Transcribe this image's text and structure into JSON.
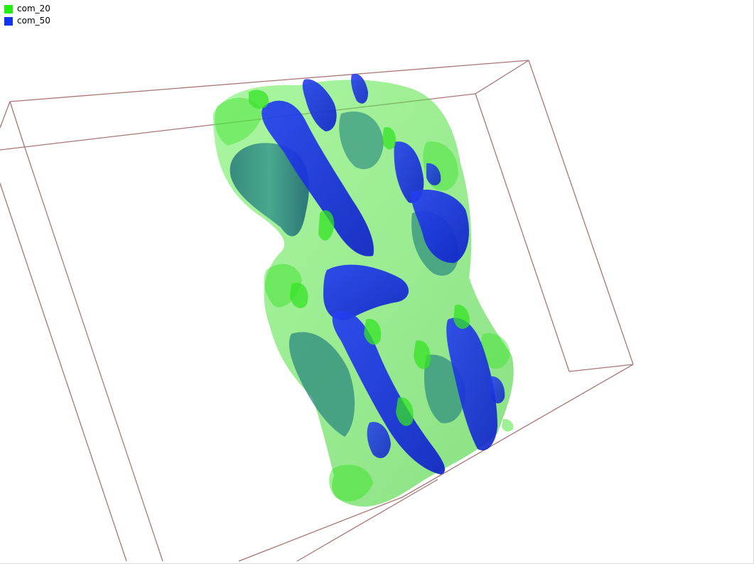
{
  "legend": {
    "items": [
      {
        "label": "com_20",
        "color": "#22ee11"
      },
      {
        "label": "com_50",
        "color": "#1133ee"
      }
    ]
  },
  "colors": {
    "bounding_box": "#a87676",
    "surface_green": "#33dd22",
    "surface_green_dark": "#1a7a5a",
    "surface_blue": "#1530e0",
    "surface_teal": "#2a7a78"
  }
}
